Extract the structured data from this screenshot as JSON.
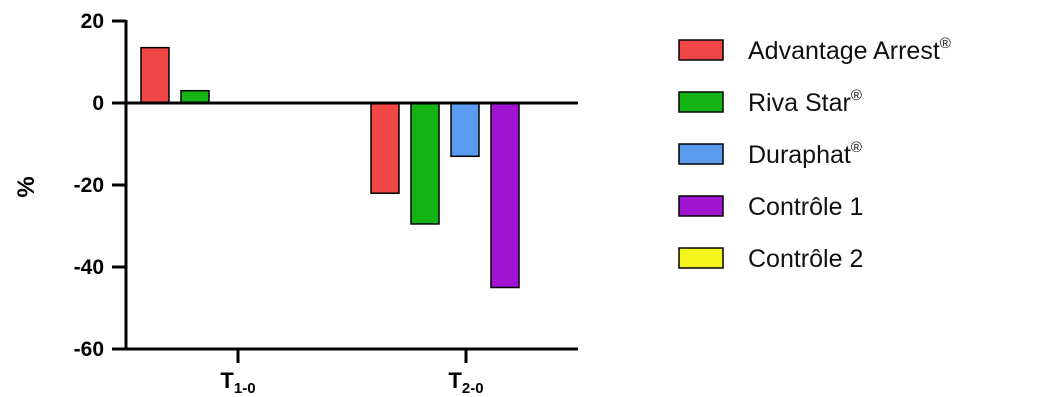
{
  "chart_data": {
    "type": "bar",
    "ylabel": "%",
    "ylim": [
      -60,
      20
    ],
    "yticks": [
      20,
      0,
      -20,
      -40,
      -60
    ],
    "categories": [
      {
        "main": "T",
        "sub": "1-0"
      },
      {
        "main": "T",
        "sub": "2-0"
      }
    ],
    "series": [
      {
        "name": "Advantage Arrest",
        "sup": "®",
        "color": "#f04646",
        "values": [
          13.5,
          -22
        ]
      },
      {
        "name": "Riva Star",
        "sup": "®",
        "color": "#14b414",
        "values": [
          3,
          -29.5
        ]
      },
      {
        "name": "Duraphat",
        "sup": "®",
        "color": "#5a9bf0",
        "values": [
          0,
          -13
        ]
      },
      {
        "name": "Contrôle 1",
        "sup": "",
        "color": "#a014d2",
        "values": [
          0,
          -45
        ]
      },
      {
        "name": "Contrôle 2",
        "sup": "",
        "color": "#f5f51e",
        "values": [
          0,
          0
        ]
      }
    ],
    "legend_position": "right"
  }
}
